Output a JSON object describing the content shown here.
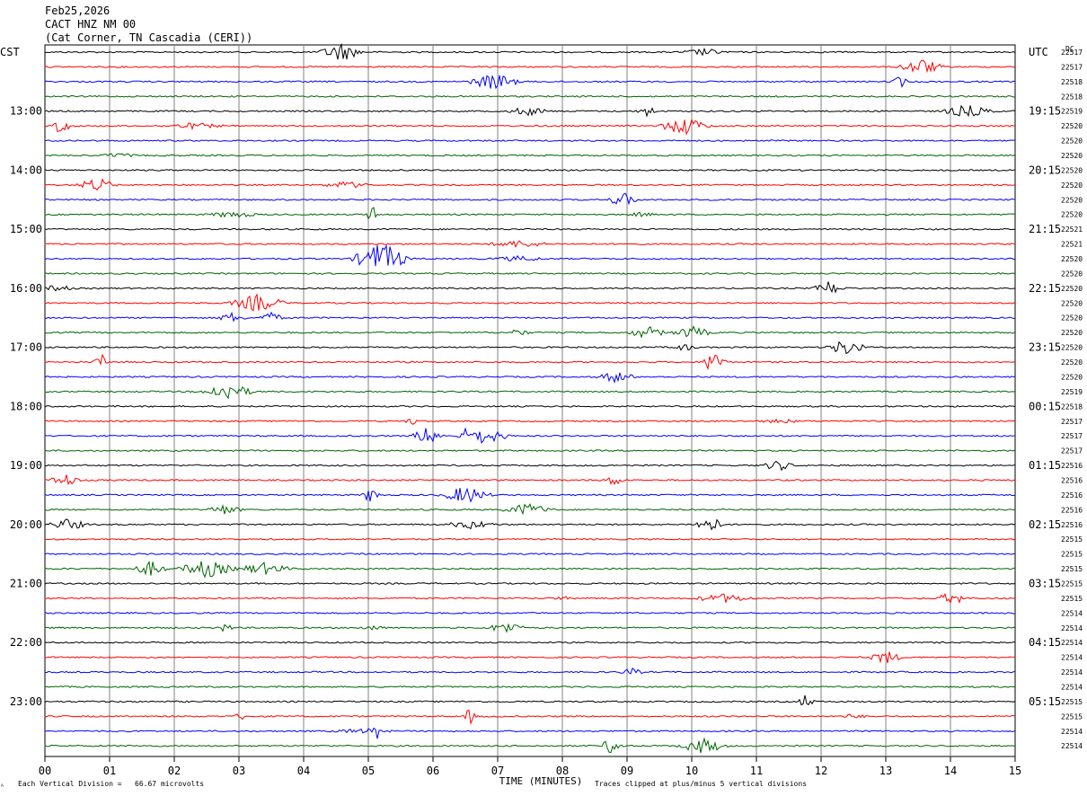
{
  "header": {
    "date": "Feb25,2026",
    "station": "CACT HNZ NM 00",
    "location": "(Cat Corner, TN Cascadia (CERI))"
  },
  "left_tz": "CST",
  "right_tz": "UTC",
  "dc_label": "DC",
  "footer": {
    "scale": "Each Vertical Division =   66.67 microvolts",
    "clip": "Traces clipped at plus/minus 5 vertical divisions",
    "mark": "ᴬ"
  },
  "colors": {
    "trace_cycle": [
      "#000000",
      "#ff0000",
      "#0000ff",
      "#006400"
    ],
    "grid": "#000000",
    "minute_line": "#808080"
  },
  "chart_data": {
    "type": "line",
    "subtype": "helicorder",
    "xlabel": "TIME (MINUTES)",
    "xlim": [
      0,
      15
    ],
    "x_ticks": [
      "00",
      "01",
      "02",
      "03",
      "04",
      "05",
      "06",
      "07",
      "08",
      "09",
      "10",
      "11",
      "12",
      "13",
      "14",
      "15"
    ],
    "left_hour_labels": [
      "13:00",
      "14:00",
      "15:00",
      "16:00",
      "17:00",
      "18:00",
      "19:00",
      "20:00",
      "21:00",
      "22:00",
      "23:00"
    ],
    "right_hour_labels": [
      "19:15",
      "20:15",
      "21:15",
      "22:15",
      "23:15",
      "00:15",
      "01:15",
      "02:15",
      "03:15",
      "04:15",
      "05:15"
    ],
    "dc_offsets": [
      "22517",
      "22517",
      "22518",
      "22518",
      "22519",
      "22520",
      "22520",
      "22520",
      "22520",
      "22520",
      "22520",
      "22520",
      "22521",
      "22521",
      "22520",
      "22520",
      "22520",
      "22520",
      "22520",
      "22520",
      "22520",
      "22520",
      "22520",
      "22519",
      "22518",
      "22517",
      "22517",
      "22517",
      "22516",
      "22516",
      "22516",
      "22516",
      "22516",
      "22515",
      "22515",
      "22515",
      "22515",
      "22515",
      "22514",
      "22514",
      "22514",
      "22514",
      "22514",
      "22514",
      "22515",
      "22515",
      "22514",
      "22514"
    ],
    "traces_per_hour": 4,
    "first_labeled_trace_index": 4
  }
}
